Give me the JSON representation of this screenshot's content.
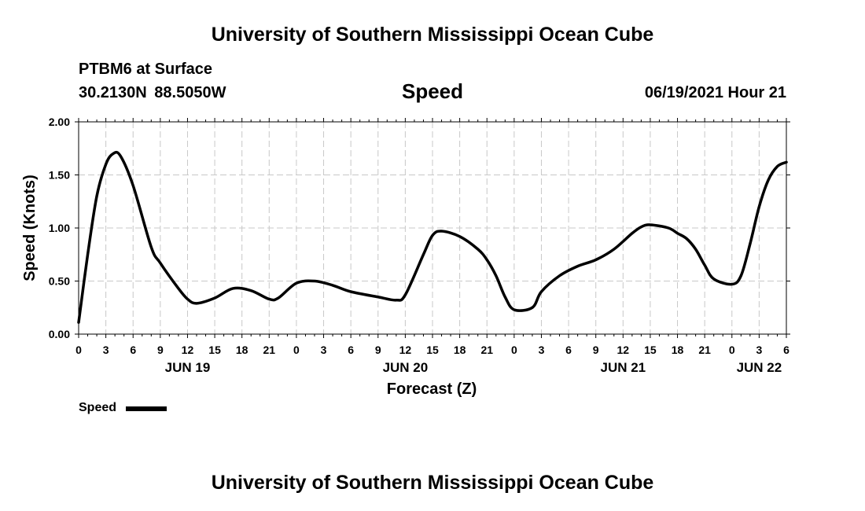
{
  "header": {
    "title": "University of Southern Mississippi Ocean Cube",
    "station": "PTBM6 at Surface",
    "coordinates": "30.2130N  88.5050W",
    "subtitle": "Speed",
    "datetime": "06/19/2021 Hour 21"
  },
  "footer": {
    "title": "University of Southern Mississippi Ocean Cube"
  },
  "legend": {
    "label": "Speed",
    "color": "#000000"
  },
  "chart_data": {
    "type": "line",
    "title": "Speed",
    "xlabel": "Forecast (Z)",
    "ylabel": "Speed (Knots)",
    "ylim": [
      0,
      2
    ],
    "xlim": [
      0,
      78
    ],
    "x_units": "hours since 06/19/2021 00Z",
    "grid": true,
    "y_ticks": [
      "0.00",
      "0.50",
      "1.00",
      "1.50",
      "2.00"
    ],
    "y_tick_values": [
      0,
      0.5,
      1.0,
      1.5,
      2.0
    ],
    "x_tick_labels": [
      "0",
      "3",
      "6",
      "9",
      "12",
      "15",
      "18",
      "21",
      "0",
      "3",
      "6",
      "9",
      "12",
      "15",
      "18",
      "21",
      "0",
      "3",
      "6",
      "9",
      "12",
      "15",
      "18",
      "21",
      "0",
      "3",
      "6"
    ],
    "day_labels": [
      {
        "label": "JUN 19",
        "hour": 12
      },
      {
        "label": "JUN 20",
        "hour": 36
      },
      {
        "label": "JUN 21",
        "hour": 60
      },
      {
        "label": "JUN 22",
        "hour": 75
      }
    ],
    "legend_position": "bottom-left",
    "series": [
      {
        "name": "Speed",
        "x": [
          0,
          1,
          2,
          3,
          3.8,
          4.6,
          6,
          8,
          9,
          11,
          12,
          13,
          15,
          17,
          19,
          21,
          22,
          24,
          26,
          28,
          30,
          33,
          35,
          36,
          38,
          39,
          40,
          42,
          44,
          45,
          46,
          47,
          48,
          50,
          51,
          53,
          55,
          57,
          59,
          61,
          62,
          63,
          65,
          66,
          67,
          68,
          69,
          70,
          72,
          73,
          74,
          75,
          76,
          77,
          78
        ],
        "values": [
          0.11,
          0.75,
          1.3,
          1.6,
          1.7,
          1.68,
          1.4,
          0.82,
          0.67,
          0.43,
          0.33,
          0.29,
          0.34,
          0.43,
          0.41,
          0.33,
          0.34,
          0.48,
          0.5,
          0.46,
          0.4,
          0.35,
          0.32,
          0.37,
          0.75,
          0.93,
          0.97,
          0.92,
          0.8,
          0.7,
          0.55,
          0.35,
          0.23,
          0.25,
          0.4,
          0.55,
          0.64,
          0.7,
          0.8,
          0.95,
          1.01,
          1.03,
          1.0,
          0.95,
          0.9,
          0.8,
          0.65,
          0.52,
          0.47,
          0.55,
          0.85,
          1.2,
          1.45,
          1.58,
          1.62
        ]
      }
    ]
  }
}
